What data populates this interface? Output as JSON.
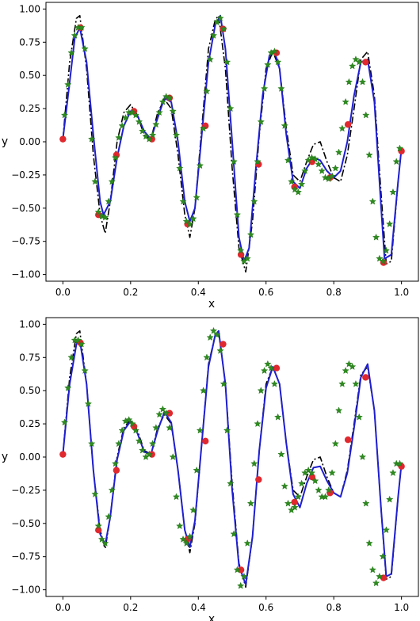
{
  "chart_data": [
    {
      "type": "line",
      "title": "",
      "xlabel": "x",
      "ylabel": "y",
      "xlim": [
        -0.05,
        1.05
      ],
      "ylim": [
        -1.05,
        1.05
      ],
      "xticks": [
        0.0,
        0.2,
        0.4,
        0.6,
        0.8,
        1.0
      ],
      "xtick_labels": [
        "0.0",
        "0.2",
        "0.4",
        "0.6",
        "0.8",
        "1.0"
      ],
      "yticks": [
        -1.0,
        -0.75,
        -0.5,
        -0.25,
        0.0,
        0.25,
        0.5,
        0.75,
        1.0
      ],
      "ytick_labels": [
        "−1.00",
        "−0.75",
        "−0.50",
        "−0.25",
        "0.00",
        "0.25",
        "0.50",
        "0.75",
        "1.00"
      ],
      "grid": false,
      "series": [
        {
          "style": "dash-dot",
          "color": "#000000",
          "x": [
            0.0,
            0.02,
            0.04,
            0.05,
            0.07,
            0.09,
            0.11,
            0.125,
            0.14,
            0.16,
            0.18,
            0.2,
            0.22,
            0.24,
            0.26,
            0.28,
            0.3,
            0.32,
            0.34,
            0.36,
            0.375,
            0.39,
            0.41,
            0.43,
            0.45,
            0.46,
            0.48,
            0.5,
            0.52,
            0.54,
            0.56,
            0.58,
            0.6,
            0.62,
            0.64,
            0.66,
            0.68,
            0.7,
            0.72,
            0.74,
            0.76,
            0.78,
            0.8,
            0.82,
            0.84,
            0.86,
            0.88,
            0.9,
            0.92,
            0.94,
            0.955,
            0.97,
            0.99,
            1.0
          ],
          "y": [
            0.02,
            0.6,
            0.93,
            0.95,
            0.55,
            -0.1,
            -0.55,
            -0.69,
            -0.45,
            0.0,
            0.22,
            0.28,
            0.2,
            0.05,
            0.02,
            0.22,
            0.32,
            0.25,
            -0.1,
            -0.55,
            -0.72,
            -0.5,
            0.1,
            0.7,
            0.92,
            0.95,
            0.55,
            -0.2,
            -0.8,
            -0.98,
            -0.6,
            0.05,
            0.55,
            0.68,
            0.55,
            0.1,
            -0.25,
            -0.3,
            -0.15,
            -0.02,
            0.0,
            -0.15,
            -0.27,
            -0.3,
            -0.1,
            0.25,
            0.62,
            0.68,
            0.35,
            -0.4,
            -0.92,
            -0.9,
            -0.3,
            -0.05
          ]
        },
        {
          "style": "solid",
          "color": "#1f1fcf",
          "x": [
            0.0,
            0.02,
            0.035,
            0.05,
            0.07,
            0.09,
            0.11,
            0.12,
            0.14,
            0.16,
            0.18,
            0.2,
            0.22,
            0.24,
            0.26,
            0.28,
            0.3,
            0.32,
            0.34,
            0.36,
            0.375,
            0.39,
            0.41,
            0.43,
            0.45,
            0.465,
            0.48,
            0.5,
            0.52,
            0.535,
            0.55,
            0.57,
            0.59,
            0.61,
            0.625,
            0.64,
            0.66,
            0.68,
            0.7,
            0.72,
            0.74,
            0.76,
            0.78,
            0.8,
            0.82,
            0.84,
            0.86,
            0.88,
            0.9,
            0.92,
            0.94,
            0.95,
            0.97,
            0.99,
            1.0
          ],
          "y": [
            0.02,
            0.45,
            0.78,
            0.86,
            0.6,
            0.05,
            -0.45,
            -0.55,
            -0.45,
            -0.12,
            0.12,
            0.23,
            0.2,
            0.08,
            0.02,
            0.18,
            0.33,
            0.3,
            0.0,
            -0.45,
            -0.6,
            -0.5,
            0.05,
            0.6,
            0.88,
            0.95,
            0.7,
            0.0,
            -0.72,
            -0.9,
            -0.8,
            -0.2,
            0.35,
            0.65,
            0.68,
            0.55,
            0.05,
            -0.3,
            -0.35,
            -0.2,
            -0.12,
            -0.14,
            -0.22,
            -0.27,
            -0.22,
            0.0,
            0.35,
            0.6,
            0.62,
            0.3,
            -0.5,
            -0.88,
            -0.85,
            -0.3,
            -0.05
          ]
        },
        {
          "style": "star-markers",
          "color": "#2e8b1f",
          "x": [
            0.005,
            0.015,
            0.025,
            0.035,
            0.045,
            0.055,
            0.065,
            0.085,
            0.095,
            0.105,
            0.115,
            0.125,
            0.135,
            0.145,
            0.155,
            0.165,
            0.175,
            0.185,
            0.195,
            0.205,
            0.215,
            0.225,
            0.235,
            0.245,
            0.255,
            0.265,
            0.275,
            0.285,
            0.295,
            0.305,
            0.315,
            0.325,
            0.335,
            0.345,
            0.355,
            0.365,
            0.375,
            0.385,
            0.395,
            0.405,
            0.415,
            0.425,
            0.435,
            0.445,
            0.455,
            0.465,
            0.475,
            0.485,
            0.495,
            0.505,
            0.515,
            0.525,
            0.535,
            0.545,
            0.555,
            0.565,
            0.575,
            0.585,
            0.595,
            0.605,
            0.615,
            0.625,
            0.635,
            0.645,
            0.655,
            0.665,
            0.675,
            0.685,
            0.695,
            0.705,
            0.715,
            0.725,
            0.735,
            0.745,
            0.755,
            0.765,
            0.775,
            0.785,
            0.795,
            0.805,
            0.815,
            0.825,
            0.835,
            0.845,
            0.855,
            0.865,
            0.875,
            0.885,
            0.895,
            0.905,
            0.915,
            0.925,
            0.935,
            0.945,
            0.955,
            0.965,
            0.975,
            0.985,
            0.995
          ],
          "y": [
            0.2,
            0.43,
            0.67,
            0.8,
            0.86,
            0.86,
            0.7,
            0.02,
            -0.3,
            -0.53,
            -0.56,
            -0.57,
            -0.45,
            -0.3,
            -0.12,
            0.03,
            0.12,
            0.18,
            0.22,
            0.22,
            0.2,
            0.15,
            0.08,
            0.04,
            0.02,
            0.05,
            0.13,
            0.22,
            0.3,
            0.34,
            0.33,
            0.23,
            0.05,
            -0.2,
            -0.45,
            -0.6,
            -0.62,
            -0.58,
            -0.42,
            -0.18,
            0.1,
            0.38,
            0.62,
            0.8,
            0.9,
            0.93,
            0.85,
            0.6,
            0.25,
            -0.15,
            -0.55,
            -0.82,
            -0.9,
            -0.88,
            -0.7,
            -0.45,
            -0.15,
            0.15,
            0.4,
            0.58,
            0.67,
            0.68,
            0.6,
            0.4,
            0.12,
            -0.14,
            -0.3,
            -0.36,
            -0.38,
            -0.32,
            -0.22,
            -0.14,
            -0.12,
            -0.13,
            -0.17,
            -0.22,
            -0.27,
            -0.28,
            -0.26,
            -0.2,
            -0.08,
            0.1,
            0.3,
            0.45,
            0.57,
            0.62,
            0.6,
            0.45,
            0.2,
            -0.1,
            -0.45,
            -0.72,
            -0.88,
            -0.9,
            -0.82,
            -0.62,
            -0.38,
            -0.15,
            -0.05
          ]
        },
        {
          "style": "circle-markers",
          "color": "#e0282e",
          "x": [
            0.0,
            0.052,
            0.105,
            0.158,
            0.21,
            0.263,
            0.315,
            0.368,
            0.421,
            0.473,
            0.526,
            0.578,
            0.631,
            0.684,
            0.736,
            0.789,
            0.842,
            0.894,
            0.947,
            1.0
          ],
          "y": [
            0.02,
            0.86,
            -0.55,
            -0.1,
            0.23,
            0.02,
            0.33,
            -0.62,
            0.12,
            0.85,
            -0.85,
            -0.17,
            0.67,
            -0.34,
            -0.15,
            -0.27,
            0.13,
            0.6,
            -0.91,
            -0.07
          ]
        }
      ]
    },
    {
      "type": "line",
      "title": "",
      "xlabel": "x",
      "ylabel": "y",
      "xlim": [
        -0.05,
        1.05
      ],
      "ylim": [
        -1.05,
        1.05
      ],
      "xticks": [
        0.0,
        0.2,
        0.4,
        0.6,
        0.8,
        1.0
      ],
      "xtick_labels": [
        "0.0",
        "0.2",
        "0.4",
        "0.6",
        "0.8",
        "1.0"
      ],
      "yticks": [
        -1.0,
        -0.75,
        -0.5,
        -0.25,
        0.0,
        0.25,
        0.5,
        0.75,
        1.0
      ],
      "ytick_labels": [
        "−1.00",
        "−0.75",
        "−0.50",
        "−0.25",
        "0.00",
        "0.25",
        "0.50",
        "0.75",
        "1.00"
      ],
      "grid": false,
      "series": [
        {
          "style": "dash-dot",
          "color": "#000000",
          "x": [
            0.0,
            0.02,
            0.04,
            0.05,
            0.07,
            0.09,
            0.11,
            0.125,
            0.14,
            0.16,
            0.18,
            0.2,
            0.22,
            0.24,
            0.26,
            0.28,
            0.3,
            0.32,
            0.34,
            0.36,
            0.375,
            0.39,
            0.41,
            0.43,
            0.45,
            0.46,
            0.48,
            0.5,
            0.52,
            0.54,
            0.56,
            0.58,
            0.6,
            0.62,
            0.64,
            0.66,
            0.68,
            0.7,
            0.72,
            0.74,
            0.76,
            0.78,
            0.8,
            0.82,
            0.84,
            0.86,
            0.88,
            0.9,
            0.92,
            0.94,
            0.955,
            0.97,
            0.99,
            1.0
          ],
          "y": [
            0.02,
            0.6,
            0.93,
            0.95,
            0.55,
            -0.1,
            -0.55,
            -0.69,
            -0.45,
            0.0,
            0.22,
            0.28,
            0.2,
            0.05,
            0.02,
            0.22,
            0.32,
            0.25,
            -0.1,
            -0.55,
            -0.72,
            -0.5,
            0.1,
            0.7,
            0.92,
            0.95,
            0.55,
            -0.2,
            -0.8,
            -0.98,
            -0.6,
            0.05,
            0.55,
            0.68,
            0.55,
            0.1,
            -0.25,
            -0.3,
            -0.15,
            -0.02,
            0.0,
            -0.15,
            -0.27,
            -0.3,
            -0.1,
            0.25,
            0.62,
            0.68,
            0.35,
            -0.4,
            -0.92,
            -0.9,
            -0.3,
            -0.05
          ]
        },
        {
          "style": "solid",
          "color": "#1f1fcf",
          "x": [
            0.0,
            0.02,
            0.04,
            0.05,
            0.07,
            0.09,
            0.11,
            0.125,
            0.14,
            0.16,
            0.18,
            0.2,
            0.22,
            0.24,
            0.26,
            0.28,
            0.3,
            0.32,
            0.34,
            0.36,
            0.375,
            0.39,
            0.41,
            0.43,
            0.45,
            0.46,
            0.48,
            0.5,
            0.52,
            0.54,
            0.56,
            0.58,
            0.6,
            0.62,
            0.64,
            0.66,
            0.68,
            0.7,
            0.72,
            0.74,
            0.76,
            0.78,
            0.8,
            0.82,
            0.84,
            0.86,
            0.88,
            0.9,
            0.92,
            0.94,
            0.955,
            0.97,
            0.99,
            1.0
          ],
          "y": [
            0.02,
            0.55,
            0.85,
            0.88,
            0.55,
            -0.1,
            -0.58,
            -0.66,
            -0.45,
            -0.02,
            0.2,
            0.27,
            0.18,
            0.04,
            0.02,
            0.2,
            0.34,
            0.26,
            -0.1,
            -0.55,
            -0.68,
            -0.48,
            0.1,
            0.68,
            0.92,
            0.95,
            0.55,
            -0.25,
            -0.82,
            -0.96,
            -0.6,
            0.05,
            0.52,
            0.68,
            0.55,
            0.1,
            -0.28,
            -0.38,
            -0.2,
            -0.08,
            -0.07,
            -0.18,
            -0.27,
            -0.3,
            -0.12,
            0.22,
            0.6,
            0.7,
            0.35,
            -0.4,
            -0.9,
            -0.88,
            -0.3,
            -0.05
          ]
        },
        {
          "style": "star-markers",
          "color": "#2e8b1f",
          "x": [
            0.005,
            0.015,
            0.025,
            0.035,
            0.045,
            0.055,
            0.065,
            0.075,
            0.085,
            0.095,
            0.105,
            0.115,
            0.125,
            0.135,
            0.145,
            0.155,
            0.165,
            0.175,
            0.185,
            0.195,
            0.205,
            0.215,
            0.225,
            0.235,
            0.245,
            0.255,
            0.265,
            0.275,
            0.285,
            0.295,
            0.305,
            0.315,
            0.325,
            0.335,
            0.345,
            0.355,
            0.365,
            0.375,
            0.385,
            0.395,
            0.405,
            0.415,
            0.425,
            0.435,
            0.445,
            0.455,
            0.465,
            0.475,
            0.485,
            0.495,
            0.505,
            0.515,
            0.525,
            0.535,
            0.545,
            0.555,
            0.565,
            0.575,
            0.585,
            0.595,
            0.605,
            0.615,
            0.625,
            0.635,
            0.645,
            0.655,
            0.665,
            0.675,
            0.685,
            0.695,
            0.705,
            0.715,
            0.725,
            0.735,
            0.745,
            0.755,
            0.765,
            0.775,
            0.785,
            0.795,
            0.805,
            0.815,
            0.825,
            0.835,
            0.845,
            0.855,
            0.865,
            0.875,
            0.885,
            0.895,
            0.905,
            0.915,
            0.925,
            0.935,
            0.945,
            0.955,
            0.965,
            0.975,
            0.985,
            0.995
          ],
          "y": [
            0.26,
            0.52,
            0.75,
            0.88,
            0.88,
            0.85,
            0.65,
            0.4,
            0.1,
            -0.28,
            -0.52,
            -0.62,
            -0.65,
            -0.45,
            -0.25,
            -0.05,
            0.1,
            0.2,
            0.27,
            0.28,
            0.25,
            0.2,
            0.12,
            0.05,
            0.0,
            0.02,
            0.1,
            0.22,
            0.32,
            0.36,
            0.33,
            0.22,
            0.0,
            -0.3,
            -0.52,
            -0.62,
            -0.65,
            -0.6,
            -0.4,
            -0.1,
            0.2,
            0.5,
            0.75,
            0.9,
            0.95,
            0.92,
            0.8,
            0.55,
            0.2,
            -0.2,
            -0.58,
            -0.85,
            -0.97,
            -0.9,
            -0.65,
            -0.35,
            -0.05,
            0.25,
            0.5,
            0.65,
            0.7,
            0.67,
            0.55,
            0.3,
            0.02,
            -0.22,
            -0.35,
            -0.4,
            -0.38,
            -0.3,
            -0.2,
            -0.12,
            -0.1,
            -0.12,
            -0.18,
            -0.25,
            -0.3,
            -0.3,
            -0.25,
            -0.12,
            0.1,
            0.35,
            0.55,
            0.65,
            0.7,
            0.68,
            0.55,
            0.3,
            0.0,
            -0.35,
            -0.65,
            -0.85,
            -0.95,
            -0.9,
            -0.75,
            -0.55,
            -0.32,
            -0.12,
            -0.05,
            -0.05
          ]
        },
        {
          "style": "circle-markers",
          "color": "#e0282e",
          "x": [
            0.0,
            0.052,
            0.105,
            0.158,
            0.21,
            0.263,
            0.315,
            0.368,
            0.421,
            0.473,
            0.526,
            0.578,
            0.631,
            0.684,
            0.736,
            0.789,
            0.842,
            0.894,
            0.947,
            1.0
          ],
          "y": [
            0.02,
            0.86,
            -0.55,
            -0.1,
            0.23,
            0.02,
            0.33,
            -0.62,
            0.12,
            0.85,
            -0.85,
            -0.17,
            0.67,
            -0.34,
            -0.15,
            -0.27,
            0.13,
            0.6,
            -0.91,
            -0.07
          ]
        }
      ]
    }
  ]
}
